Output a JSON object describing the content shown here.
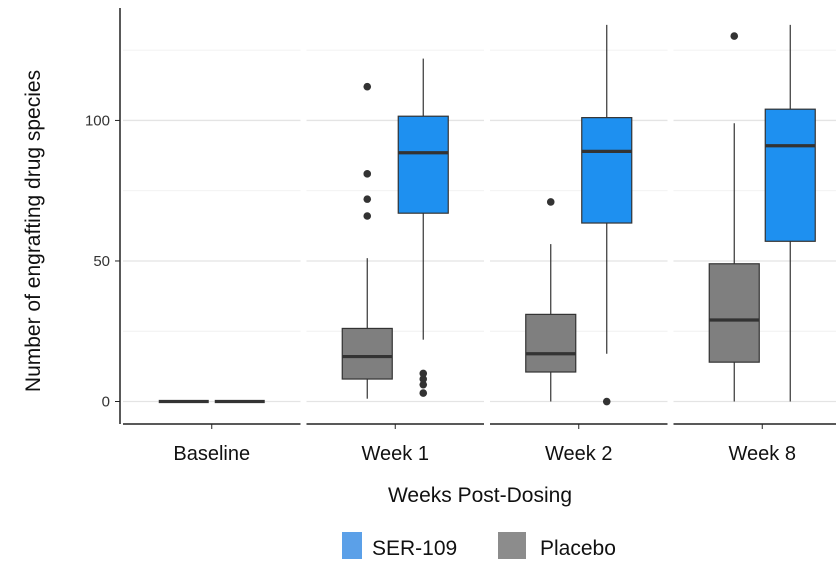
{
  "chart_data": {
    "type": "box",
    "xlabel": "Weeks Post-Dosing",
    "ylabel": "Number of engrafting drug species",
    "categories": [
      "Baseline",
      "Week 1",
      "Week 2",
      "Week 8"
    ],
    "yticks": [
      "0",
      "50",
      "100"
    ],
    "ylim": [
      -8,
      140
    ],
    "grid": true,
    "legend_position": "bottom",
    "legend": [
      {
        "name": "SER-109",
        "color": "#1e90f0"
      },
      {
        "name": "Placebo",
        "color": "#7f7f7f"
      }
    ],
    "series": [
      {
        "name": "Placebo",
        "color": "#7f7f7f",
        "boxes": [
          {
            "category": "Baseline",
            "min": 0,
            "q1": 0,
            "median": 0,
            "q3": 0,
            "max": 0,
            "outliers": []
          },
          {
            "category": "Week 1",
            "min": 1,
            "q1": 8,
            "median": 16,
            "q3": 26,
            "max": 51,
            "outliers": [
              66,
              72,
              81,
              112
            ]
          },
          {
            "category": "Week 2",
            "min": 0,
            "q1": 10.5,
            "median": 17,
            "q3": 31,
            "max": 56,
            "outliers": [
              71
            ]
          },
          {
            "category": "Week 8",
            "min": 0,
            "q1": 14,
            "median": 29,
            "q3": 49,
            "max": 99,
            "outliers": [
              130
            ]
          }
        ]
      },
      {
        "name": "SER-109",
        "color": "#1e90f0",
        "boxes": [
          {
            "category": "Baseline",
            "min": 0,
            "q1": 0,
            "median": 0,
            "q3": 0,
            "max": 0,
            "outliers": []
          },
          {
            "category": "Week 1",
            "min": 22,
            "q1": 67,
            "median": 88.5,
            "q3": 101.5,
            "max": 122,
            "outliers": [
              3,
              6,
              8,
              10
            ]
          },
          {
            "category": "Week 2",
            "min": 17,
            "q1": 63.5,
            "median": 89,
            "q3": 101,
            "max": 134,
            "outliers": [
              0
            ]
          },
          {
            "category": "Week 8",
            "min": 0,
            "q1": 57,
            "median": 91,
            "q3": 104,
            "max": 134,
            "outliers": []
          }
        ]
      }
    ]
  }
}
